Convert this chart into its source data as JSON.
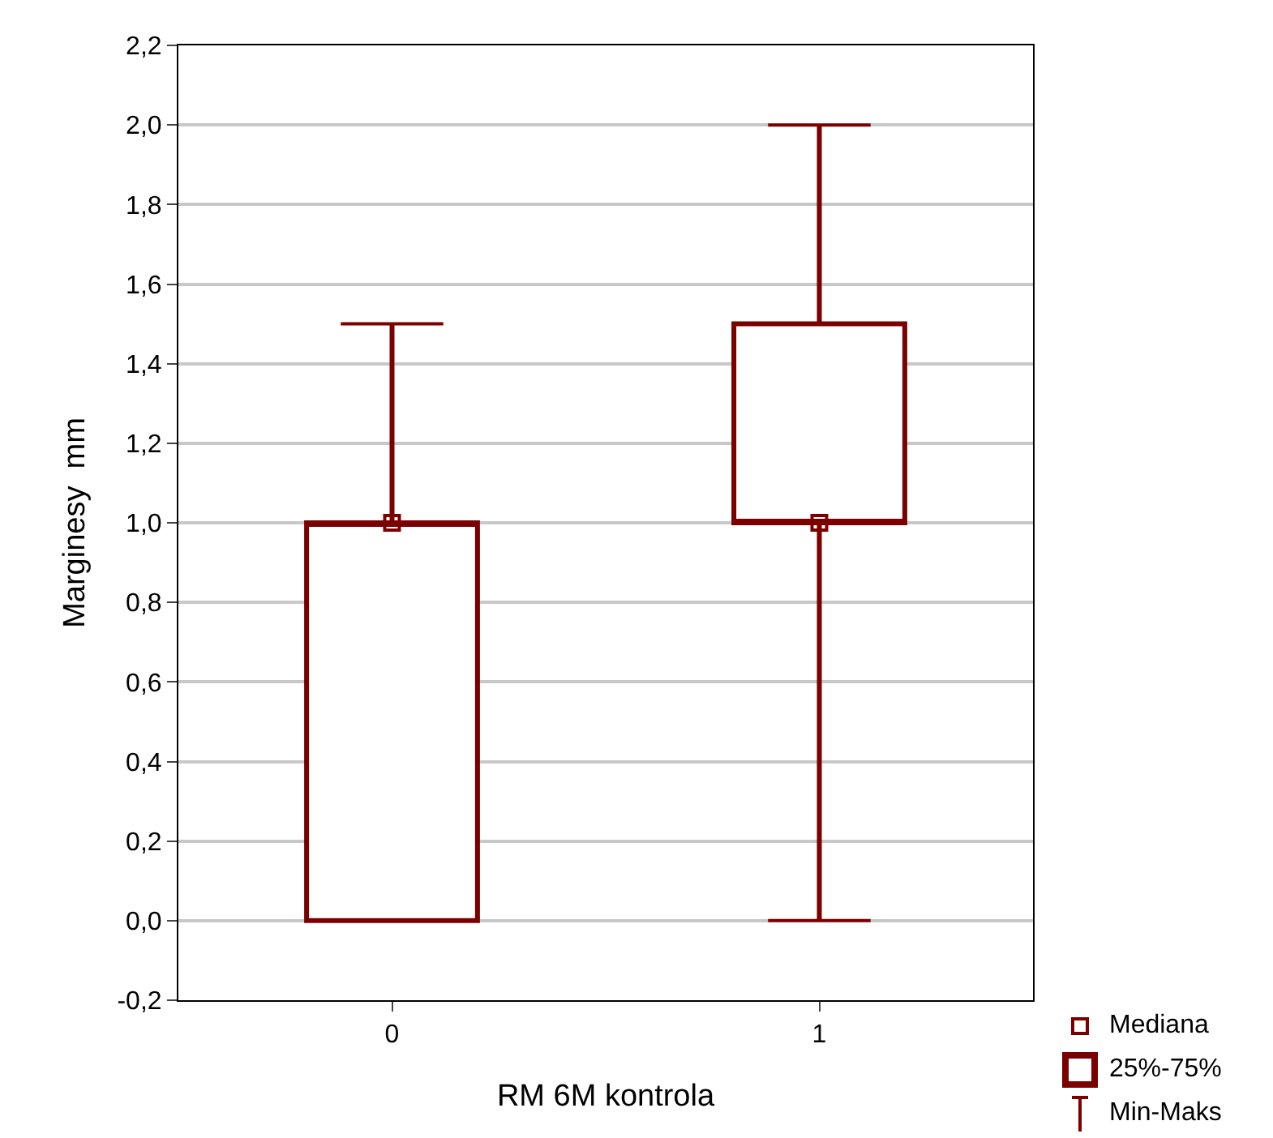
{
  "chart_data": {
    "type": "box",
    "xlabel": "RM 6M kontrola",
    "ylabel": "Marginesy  mm",
    "categories": [
      "0",
      "1"
    ],
    "series": [
      {
        "color": "#7b0000",
        "boxes": [
          {
            "low": 0,
            "q1": 0,
            "median": 1.0,
            "q3": 1.0,
            "high": 1.5
          },
          {
            "low": 0,
            "q1": 1.0,
            "median": 1.0,
            "q3": 1.5,
            "high": 2.0
          }
        ]
      },
      {
        "type": "scatter",
        "name": "Mediana",
        "color": "#7b0000",
        "marker": "square",
        "x": [
          "0",
          "1"
        ],
        "values": [
          1.0,
          1.0
        ]
      }
    ],
    "ylim": [
      -0.2,
      2.2
    ],
    "yticks": [
      {
        "value": -0.2,
        "label": "-0,2"
      },
      {
        "value": 0,
        "label": "0,0"
      },
      {
        "value": 0.2,
        "label": "0,2"
      },
      {
        "value": 0.4,
        "label": "0,4"
      },
      {
        "value": 0.6,
        "label": "0,6"
      },
      {
        "value": 0.8,
        "label": "0,8"
      },
      {
        "value": 1.0,
        "label": "1,0"
      },
      {
        "value": 1.2,
        "label": "1,2"
      },
      {
        "value": 1.4,
        "label": "1,4"
      },
      {
        "value": 1.6,
        "label": "1,6"
      },
      {
        "value": 1.8,
        "label": "1,8"
      },
      {
        "value": 2.0,
        "label": "2,0"
      },
      {
        "value": 2.2,
        "label": "2,2"
      }
    ],
    "grid": "y",
    "annotations": [
      "25%-75%",
      "Min-Maks"
    ]
  }
}
